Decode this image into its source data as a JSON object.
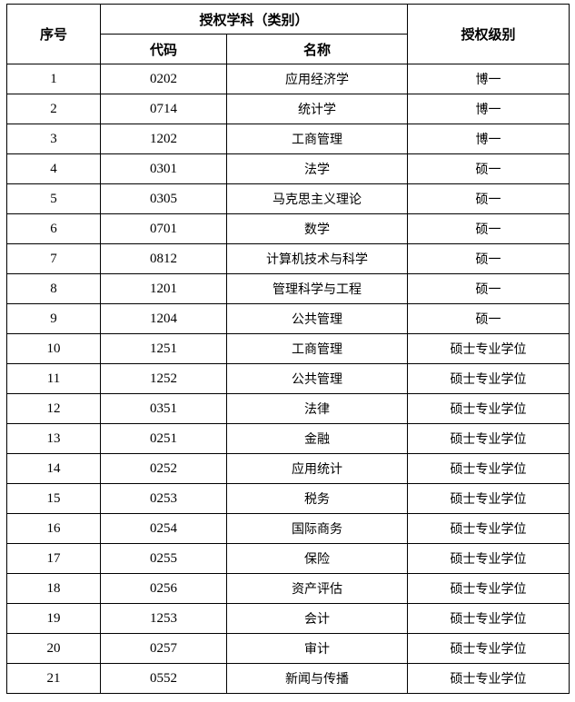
{
  "header": {
    "index": "序号",
    "discipline_group": "授权学科（类别）",
    "code": "代码",
    "name": "名称",
    "level": "授权级别"
  },
  "rows": [
    {
      "index": "1",
      "code": "0202",
      "name": "应用经济学",
      "level": "博一"
    },
    {
      "index": "2",
      "code": "0714",
      "name": "统计学",
      "level": "博一"
    },
    {
      "index": "3",
      "code": "1202",
      "name": "工商管理",
      "level": "博一"
    },
    {
      "index": "4",
      "code": "0301",
      "name": "法学",
      "level": "硕一"
    },
    {
      "index": "5",
      "code": "0305",
      "name": "马克思主义理论",
      "level": "硕一"
    },
    {
      "index": "6",
      "code": "0701",
      "name": "数学",
      "level": "硕一"
    },
    {
      "index": "7",
      "code": "0812",
      "name": "计算机技术与科学",
      "level": "硕一"
    },
    {
      "index": "8",
      "code": "1201",
      "name": "管理科学与工程",
      "level": "硕一"
    },
    {
      "index": "9",
      "code": "1204",
      "name": "公共管理",
      "level": "硕一"
    },
    {
      "index": "10",
      "code": "1251",
      "name": "工商管理",
      "level": "硕士专业学位"
    },
    {
      "index": "11",
      "code": "1252",
      "name": "公共管理",
      "level": "硕士专业学位"
    },
    {
      "index": "12",
      "code": "0351",
      "name": "法律",
      "level": "硕士专业学位"
    },
    {
      "index": "13",
      "code": "0251",
      "name": "金融",
      "level": "硕士专业学位"
    },
    {
      "index": "14",
      "code": "0252",
      "name": "应用统计",
      "level": "硕士专业学位"
    },
    {
      "index": "15",
      "code": "0253",
      "name": "税务",
      "level": "硕士专业学位"
    },
    {
      "index": "16",
      "code": "0254",
      "name": "国际商务",
      "level": "硕士专业学位"
    },
    {
      "index": "17",
      "code": "0255",
      "name": "保险",
      "level": "硕士专业学位"
    },
    {
      "index": "18",
      "code": "0256",
      "name": "资产评估",
      "level": "硕士专业学位"
    },
    {
      "index": "19",
      "code": "1253",
      "name": "会计",
      "level": "硕士专业学位"
    },
    {
      "index": "20",
      "code": "0257",
      "name": "审计",
      "level": "硕士专业学位"
    },
    {
      "index": "21",
      "code": "0552",
      "name": "新闻与传播",
      "level": "硕士专业学位"
    }
  ]
}
